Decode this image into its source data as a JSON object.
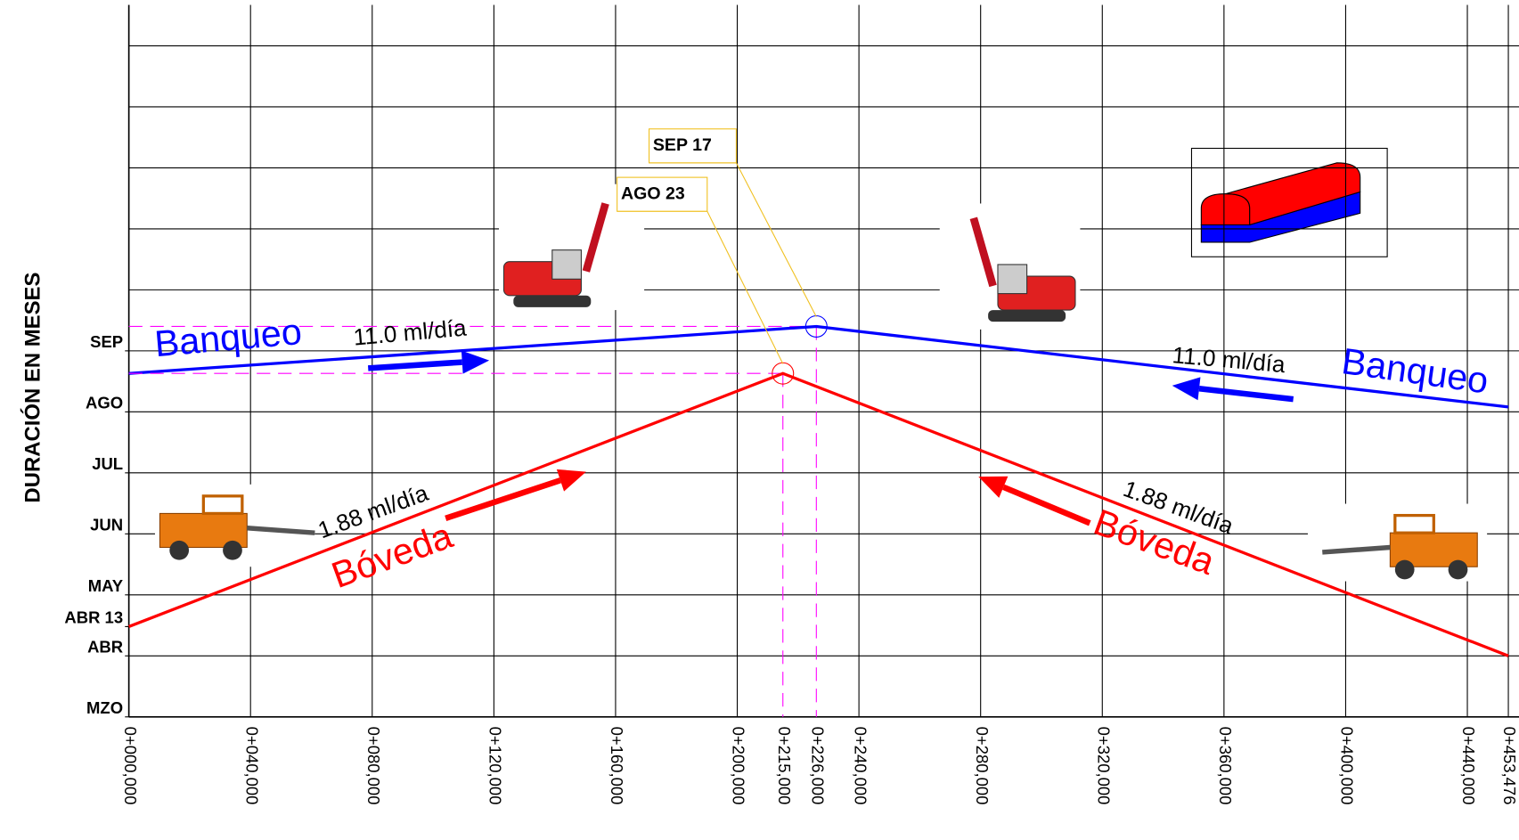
{
  "chart_data": {
    "type": "line",
    "y_label": "DURACIÓN EN MESES",
    "xlim": [
      0,
      453.476
    ],
    "ylim": [
      0,
      11.67
    ],
    "xticks": [
      {
        "value": 0,
        "label": "0+000,000"
      },
      {
        "value": 40,
        "label": "0+040,000"
      },
      {
        "value": 80,
        "label": "0+080,000"
      },
      {
        "value": 120,
        "label": "0+120,000"
      },
      {
        "value": 160,
        "label": "0+160,000"
      },
      {
        "value": 200,
        "label": "0+200,000"
      },
      {
        "value": 215,
        "label": "0+215,000"
      },
      {
        "value": 226,
        "label": "0+226,000"
      },
      {
        "value": 240,
        "label": "0+240,000"
      },
      {
        "value": 280,
        "label": "0+280,000"
      },
      {
        "value": 320,
        "label": "0+320,000"
      },
      {
        "value": 360,
        "label": "0+360,000"
      },
      {
        "value": 400,
        "label": "0+400,000"
      },
      {
        "value": 440,
        "label": "0+440,000"
      },
      {
        "value": 453.476,
        "label": "0+453,476"
      }
    ],
    "yticks": [
      {
        "value": 0,
        "label": "MZO"
      },
      {
        "value": 1,
        "label": "ABR"
      },
      {
        "value": 1.48,
        "label": "ABR 13"
      },
      {
        "value": 2,
        "label": "MAY"
      },
      {
        "value": 3,
        "label": "JUN"
      },
      {
        "value": 4,
        "label": "JUL"
      },
      {
        "value": 5,
        "label": "AGO"
      },
      {
        "value": 6,
        "label": "SEP"
      }
    ],
    "ygrid": [
      7,
      8,
      9,
      10,
      11
    ],
    "grid": true,
    "series": [
      {
        "name": "Banqueo",
        "color": "#0000ff",
        "x": [
          0,
          226,
          453.476
        ],
        "values": [
          5.63,
          6.4,
          5.08
        ],
        "rate": "11.0 ml/día",
        "peak_label": "SEP 17"
      },
      {
        "name": "Bóveda",
        "color": "#ff0000",
        "x": [
          0,
          215,
          453.476
        ],
        "values": [
          1.48,
          5.63,
          1.0
        ],
        "rate": "1.88 ml/día",
        "peak_label": "AGO 23"
      }
    ],
    "reference_color": "#ff00ff"
  }
}
